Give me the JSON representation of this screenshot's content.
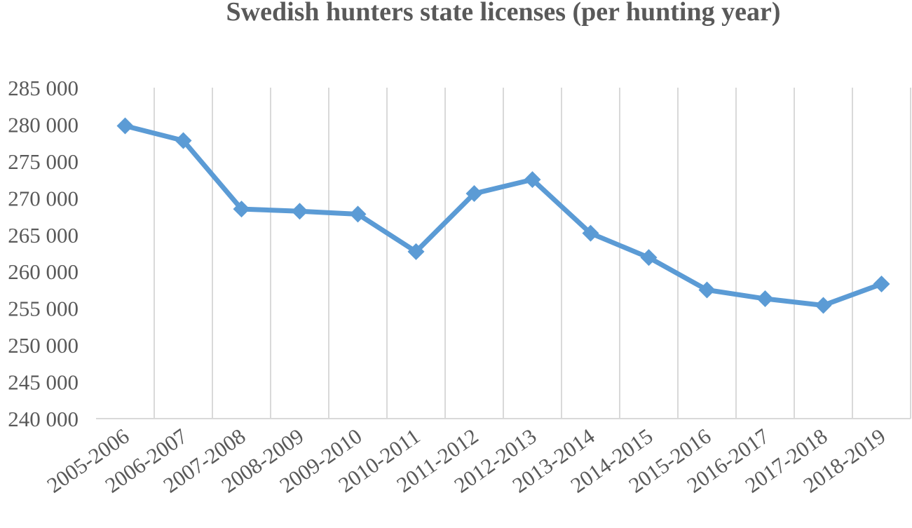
{
  "chart_data": {
    "type": "line",
    "title": "Swedish hunters state licenses (per hunting year)",
    "xlabel": "",
    "ylabel": "",
    "categories": [
      "2005-2006",
      "2006-2007",
      "2007-2008",
      "2008-2009",
      "2009-2010",
      "2010-2011",
      "2011-2012",
      "2012-2013",
      "2013-2014",
      "2014-2015",
      "2015-2016",
      "2016-2017",
      "2017-2018",
      "2018-2019"
    ],
    "series": [
      {
        "values": [
          279800,
          277800,
          268500,
          268200,
          267800,
          262700,
          270600,
          272500,
          265200,
          261900,
          257500,
          256300,
          255400,
          258300
        ],
        "color": "#5b9bd5",
        "marker": "diamond"
      }
    ],
    "ylim": [
      240000,
      285000
    ],
    "yticks": [
      240000,
      245000,
      250000,
      255000,
      260000,
      265000,
      270000,
      275000,
      280000,
      285000
    ],
    "ytick_labels": [
      "240 000",
      "245 000",
      "250 000",
      "255 000",
      "260 000",
      "265 000",
      "270 000",
      "275 000",
      "280 000",
      "285 000"
    ],
    "vertical_gridlines": true,
    "horizontal_gridlines": false,
    "legend": "none"
  }
}
